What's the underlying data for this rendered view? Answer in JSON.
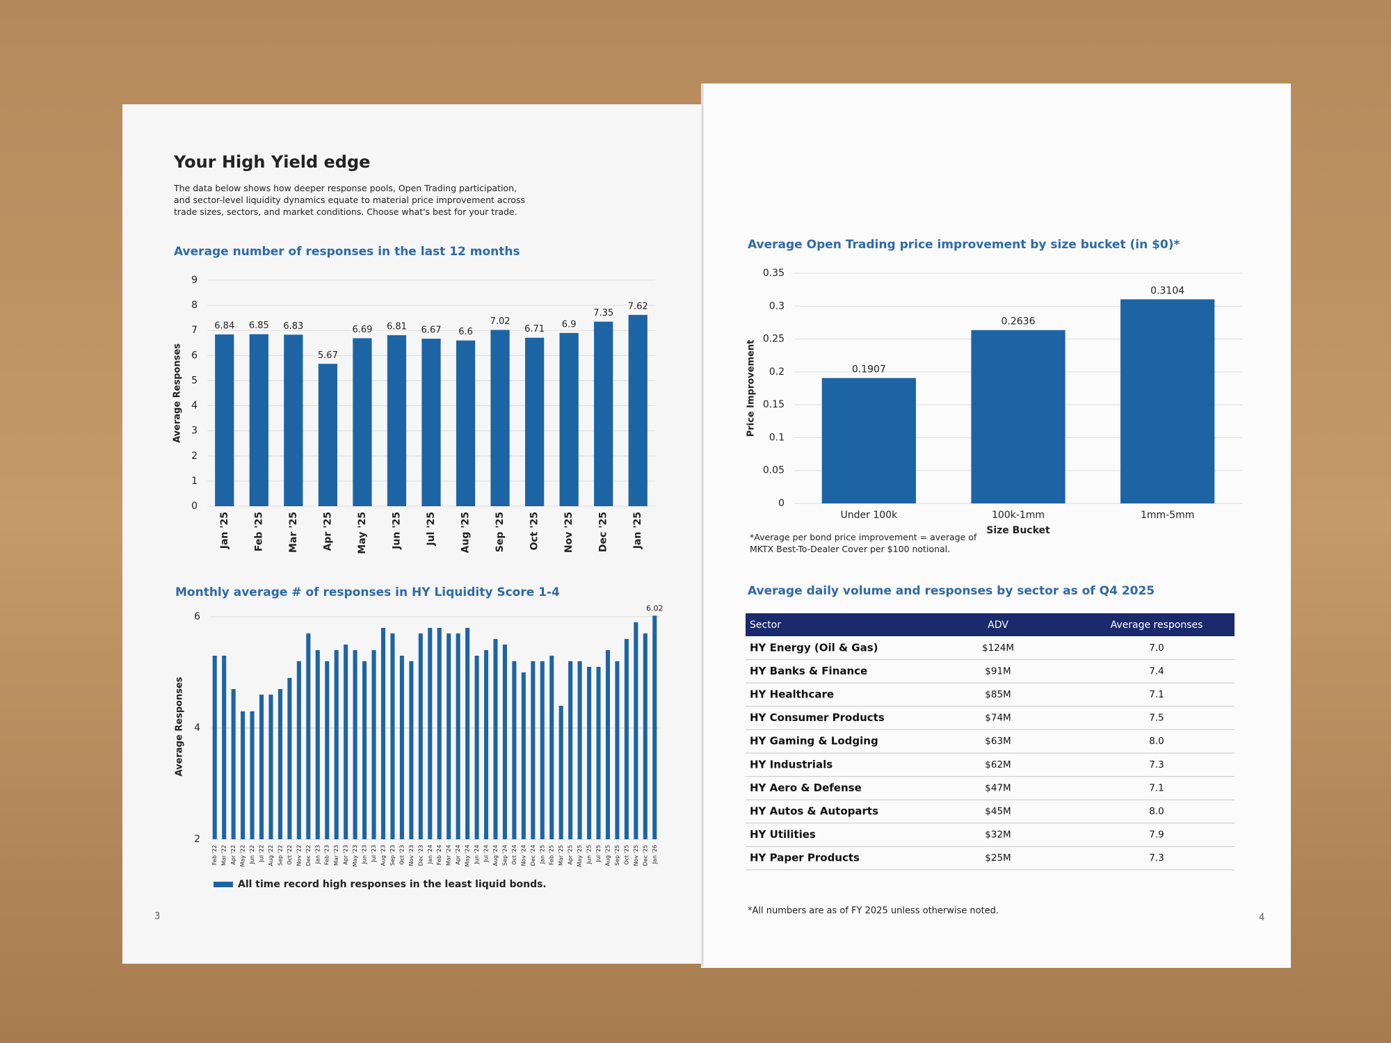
{
  "document": {
    "left_page": {
      "title": "Your High Yield edge",
      "intro": "The data below shows how deeper response pools, Open Trading participation, and sector-level liquidity dynamics equate to material price improvement across trade sizes, sectors, and market conditions. Choose what's best for your trade.",
      "page_number": "3"
    },
    "right_page": {
      "table": {
        "title": "Average daily volume and responses by sector as of Q4 2025",
        "columns": [
          "Sector",
          "ADV",
          "Average responses"
        ],
        "rows": [
          [
            "HY Energy (Oil & Gas)",
            "$124M",
            "7.0"
          ],
          [
            "HY Banks & Finance",
            "$91M",
            "7.4"
          ],
          [
            "HY Healthcare",
            "$85M",
            "7.1"
          ],
          [
            "HY Consumer Products",
            "$74M",
            "7.5"
          ],
          [
            "HY Gaming & Lodging",
            "$63M",
            "8.0"
          ],
          [
            "HY Industrials",
            "$62M",
            "7.3"
          ],
          [
            "HY Aero & Defense",
            "$47M",
            "7.1"
          ],
          [
            "HY Autos & Autoparts",
            "$45M",
            "8.0"
          ],
          [
            "HY Utilities",
            "$32M",
            "7.9"
          ],
          [
            "HY Paper Products",
            "$25M",
            "7.3"
          ]
        ]
      },
      "footnote": "*All numbers are as of FY 2025 unless otherwise noted.",
      "page_number": "4"
    }
  },
  "chart_data": [
    {
      "type": "bar",
      "title": "Average number of responses in the last 12 months",
      "y_label": "Average Responses",
      "categories": [
        "Jan '25",
        "Feb '25",
        "Mar '25",
        "Apr '25",
        "May '25",
        "Jun '25",
        "Jul '25",
        "Aug '25",
        "Sep '25",
        "Oct '25",
        "Nov '25",
        "Dec '25",
        "Jan '25"
      ],
      "values": [
        6.84,
        6.85,
        6.83,
        5.67,
        6.69,
        6.81,
        6.67,
        6.6,
        7.02,
        6.71,
        6.9,
        7.35,
        7.62
      ],
      "color": "#1d64a4",
      "data_labels": true,
      "ylim": [
        0,
        9
      ],
      "yticks": [
        0,
        1,
        2,
        3,
        4,
        5,
        6,
        7,
        8,
        9
      ],
      "grid": true
    },
    {
      "type": "bar",
      "title": "Monthly average # of responses in HY Liquidity Score 1-4",
      "y_label": "Average Responses",
      "categories": [
        "Feb '22",
        "Mar '22",
        "Apr '22",
        "May '22",
        "Jun '22",
        "Jul '22",
        "Aug '22",
        "Sep '22",
        "Oct '22",
        "Nov '22",
        "Dec '22",
        "Jan '23",
        "Feb '23",
        "Mar '23",
        "Apr '23",
        "May '23",
        "Jun '23",
        "Jul '23",
        "Aug '23",
        "Sep '23",
        "Oct '23",
        "Nov '23",
        "Dec '23",
        "Jan '24",
        "Feb '24",
        "Mar '24",
        "Apr '24",
        "May '24",
        "Jun '24",
        "Jul '24",
        "Aug '24",
        "Sep '24",
        "Oct '24",
        "Nov '24",
        "Dec '24",
        "Jan '25",
        "Feb '25",
        "Mar '25",
        "Apr '25",
        "May '25",
        "Jun '25",
        "Jul '25",
        "Aug '25",
        "Sep '25",
        "Oct '25",
        "Nov '25",
        "Dec '25",
        "Jan '26"
      ],
      "series": [
        {
          "name": "All time record high responses in the least liquid bonds.",
          "color": "#1d64a4",
          "values": [
            5.3,
            5.3,
            4.7,
            4.3,
            4.3,
            4.6,
            4.6,
            4.7,
            4.9,
            5.2,
            5.7,
            5.4,
            5.2,
            5.4,
            5.5,
            5.4,
            5.2,
            5.4,
            5.8,
            5.7,
            5.3,
            5.2,
            5.7,
            5.8,
            5.8,
            5.7,
            5.7,
            5.8,
            5.3,
            5.4,
            5.6,
            5.5,
            5.2,
            5.0,
            5.2,
            5.2,
            5.3,
            4.4,
            5.2,
            5.2,
            5.1,
            5.1,
            5.4,
            5.2,
            5.6,
            5.9,
            5.7,
            6.02
          ],
          "value_labels": [
            null,
            null,
            null,
            null,
            null,
            null,
            null,
            null,
            null,
            null,
            null,
            null,
            null,
            null,
            null,
            null,
            null,
            null,
            null,
            null,
            null,
            null,
            null,
            null,
            null,
            null,
            null,
            null,
            null,
            null,
            null,
            null,
            null,
            null,
            null,
            null,
            null,
            null,
            null,
            null,
            null,
            null,
            null,
            null,
            null,
            null,
            null,
            "6.02"
          ]
        }
      ],
      "ylim": [
        2,
        6.05
      ],
      "yticks": [
        2,
        4,
        6
      ],
      "grid": true
    },
    {
      "type": "bar",
      "title": "Average Open Trading price improvement by size bucket (in $0)*",
      "y_label": "Price Improvement",
      "x_label": "Size Bucket",
      "categories": [
        "Under 100k",
        "100k-1mm",
        "1mm-5mm"
      ],
      "values": [
        0.1907,
        0.2636,
        0.3104
      ],
      "color": "#1d64a4",
      "data_labels": true,
      "ylim": [
        0,
        0.35
      ],
      "yticks": [
        0,
        0.05,
        0.1,
        0.15,
        0.2,
        0.25,
        0.3,
        0.35
      ],
      "grid": true,
      "footnote": "*Average per bond price improvement = average of MKTX Best-To-Dealer Cover per $100 notional."
    }
  ]
}
